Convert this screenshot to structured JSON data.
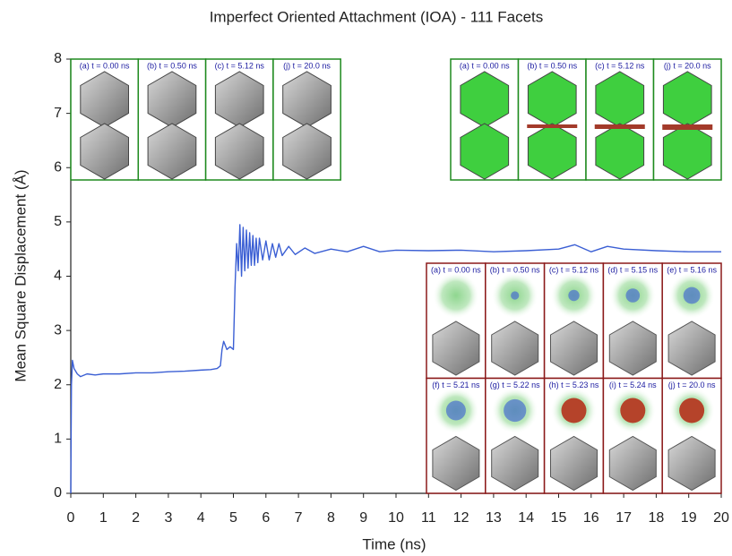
{
  "chart_data": {
    "type": "line",
    "title": "Imperfect Oriented Attachment (IOA) - 111 Facets",
    "x_label": "Time (ns)",
    "y_label": "Mean Square Displacement (Å)",
    "xlim": [
      0,
      20
    ],
    "ylim": [
      0,
      8
    ],
    "xticks": [
      0,
      1,
      2,
      3,
      4,
      5,
      6,
      7,
      8,
      9,
      10,
      11,
      12,
      13,
      14,
      15,
      16,
      17,
      18,
      19,
      20
    ],
    "yticks": [
      0,
      1,
      2,
      3,
      4,
      5,
      6,
      7,
      8
    ],
    "grid": false,
    "x": [
      0,
      0.02,
      0.05,
      0.1,
      0.2,
      0.3,
      0.5,
      0.75,
      1,
      1.5,
      2,
      2.5,
      3,
      3.5,
      4,
      4.3,
      4.5,
      4.6,
      4.65,
      4.7,
      4.8,
      4.9,
      5.0,
      5.05,
      5.1,
      5.15,
      5.2,
      5.25,
      5.3,
      5.35,
      5.4,
      5.45,
      5.5,
      5.55,
      5.6,
      5.65,
      5.7,
      5.75,
      5.8,
      5.9,
      6.0,
      6.1,
      6.2,
      6.3,
      6.4,
      6.5,
      6.7,
      6.9,
      7.2,
      7.5,
      8,
      8.5,
      9,
      9.5,
      10,
      11,
      12,
      13,
      14,
      15,
      15.5,
      16,
      16.5,
      17,
      18,
      19,
      20
    ],
    "series": [
      {
        "color": "#3b5fd4",
        "values": [
          0,
          2.0,
          2.45,
          2.3,
          2.2,
          2.15,
          2.2,
          2.18,
          2.2,
          2.2,
          2.22,
          2.22,
          2.24,
          2.25,
          2.27,
          2.28,
          2.3,
          2.35,
          2.65,
          2.8,
          2.65,
          2.7,
          2.65,
          3.8,
          4.6,
          4.1,
          4.95,
          4.0,
          4.9,
          4.1,
          4.85,
          4.15,
          4.8,
          4.2,
          4.75,
          4.2,
          4.7,
          4.25,
          4.7,
          4.3,
          4.65,
          4.3,
          4.6,
          4.35,
          4.6,
          4.38,
          4.55,
          4.4,
          4.52,
          4.42,
          4.5,
          4.45,
          4.55,
          4.45,
          4.48,
          4.47,
          4.48,
          4.45,
          4.47,
          4.5,
          4.58,
          4.45,
          4.55,
          4.5,
          4.47,
          4.45,
          4.45
        ]
      }
    ],
    "insets": [
      {
        "panels": [
          "(a) t = 0.00 ns",
          "(b) t = 0.50 ns",
          "(c) t = 5.12 ns",
          "(j) t = 20.0 ns"
        ]
      },
      {
        "panels": [
          "(a) t = 0.00 ns",
          "(b) t = 0.50 ns",
          "(c) t = 5.12 ns",
          "(j) t = 20.0 ns"
        ]
      },
      {
        "panels": [
          "(a) t = 0.00 ns",
          "(b) t = 0.50 ns",
          "(c) t = 5.12 ns",
          "(d) t = 5.15 ns",
          "(e) t = 5.16 ns",
          "(f) t = 5.21 ns",
          "(g) t = 5.22 ns",
          "(h) t = 5.23 ns",
          "(i) t = 5.24 ns",
          "(j) t = 20.0 ns"
        ]
      }
    ]
  }
}
